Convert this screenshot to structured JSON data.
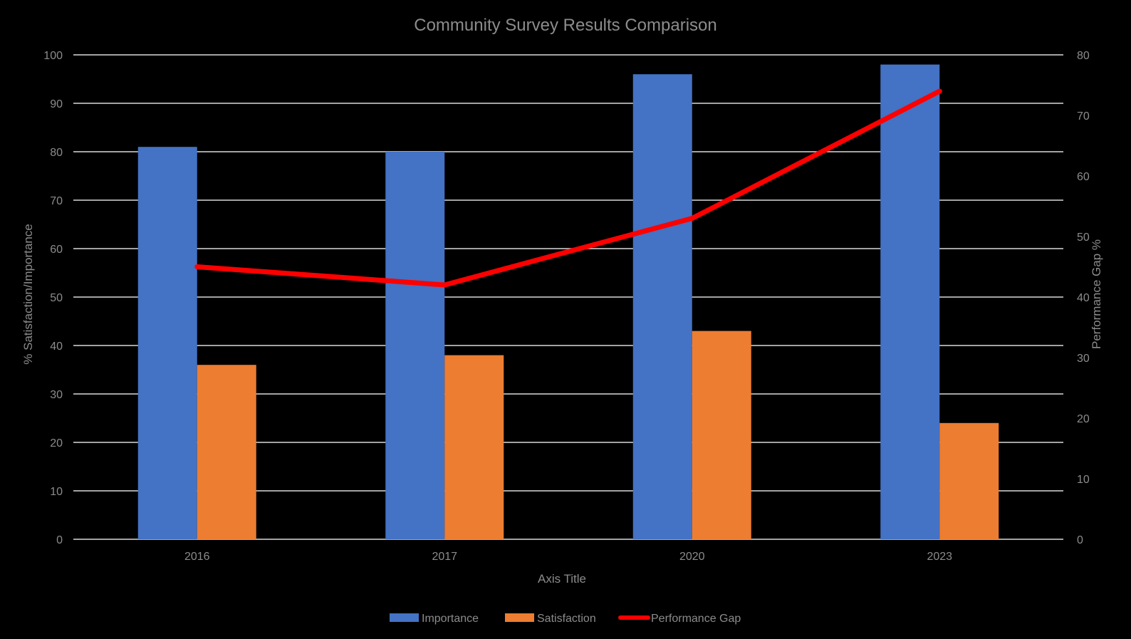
{
  "chart_data": {
    "type": "bar",
    "title": "Community Survey Results Comparison",
    "xlabel": "Axis Title",
    "ylabel": "% Satisfaction/Importance",
    "y2label": "Performance Gap %",
    "categories": [
      "2016",
      "2017",
      "2020",
      "2023"
    ],
    "ylim": [
      0,
      100
    ],
    "y2lim": [
      0,
      80
    ],
    "yticks": [
      0,
      10,
      20,
      30,
      40,
      50,
      60,
      70,
      80,
      90,
      100
    ],
    "y2ticks": [
      0,
      10,
      20,
      30,
      40,
      50,
      60,
      70,
      80
    ],
    "grid": true,
    "legend_position": "bottom",
    "series": [
      {
        "name": "Importance",
        "type": "bar",
        "axis": "left",
        "color": "#4472c4",
        "values": [
          81,
          80,
          96,
          98
        ]
      },
      {
        "name": "Satisfaction",
        "type": "bar",
        "axis": "left",
        "color": "#ed7d31",
        "values": [
          36,
          38,
          43,
          24
        ]
      },
      {
        "name": "Performance Gap",
        "type": "line",
        "axis": "right",
        "color": "#ff0000",
        "values": [
          45,
          42,
          53,
          74
        ]
      }
    ]
  }
}
